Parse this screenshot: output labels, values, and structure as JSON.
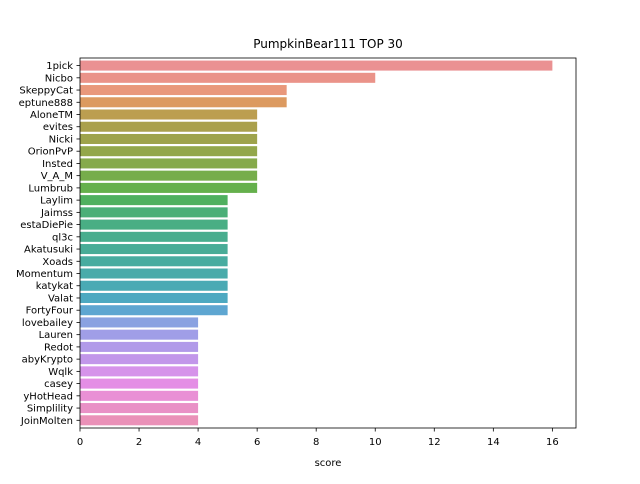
{
  "chart_data": {
    "type": "bar",
    "orientation": "horizontal",
    "title": "PumpkinBear111 TOP 30",
    "xlabel": "score",
    "ylabel": "",
    "xlim": [
      0,
      16.8
    ],
    "xticks": [
      "0",
      "2",
      "4",
      "6",
      "8",
      "10",
      "12",
      "14",
      "16"
    ],
    "grid": false,
    "legend": "none",
    "categories": [
      "1pick",
      "Nicbo",
      "SkeppyCat",
      "eptune888",
      "AloneTM",
      "evites",
      "Nicki",
      "OrionPvP",
      "Insted",
      "V_A_M",
      "Lumbrub",
      "Laylim",
      "Jaimss",
      "estaDiePie",
      "ql3c",
      "Akatusuki",
      "Xoads",
      "Momentum",
      "katykat",
      "Valat",
      "FortyFour",
      "lovebailey",
      "Lauren",
      "Redot",
      "abyKrypto",
      "Wqlk",
      "casey",
      "yHotHead",
      "Simplility",
      "JoinMolten"
    ],
    "values": [
      16,
      10,
      7,
      7,
      6,
      6,
      6,
      6,
      6,
      6,
      6,
      5,
      5,
      5,
      5,
      5,
      5,
      5,
      5,
      5,
      5,
      4,
      4,
      4,
      4,
      4,
      4,
      4,
      4,
      4
    ],
    "colors": [
      "#ea9192",
      "#ea9389",
      "#e9987b",
      "#dc9a60",
      "#bc9e50",
      "#aaa04c",
      "#9ea34b",
      "#93a74b",
      "#86aa4b",
      "#76ad4b",
      "#65b04c",
      "#4fb05f",
      "#4aaf77",
      "#49ae84",
      "#48ad8e",
      "#48ac97",
      "#48aca0",
      "#49abaa",
      "#4aaab4",
      "#4da9c1",
      "#5ea6d1",
      "#8aa2e1",
      "#a09ee7",
      "#b19ae9",
      "#c297ea",
      "#d693ea",
      "#e48ee5",
      "#e990d5",
      "#e991c6",
      "#ea91b8"
    ]
  }
}
